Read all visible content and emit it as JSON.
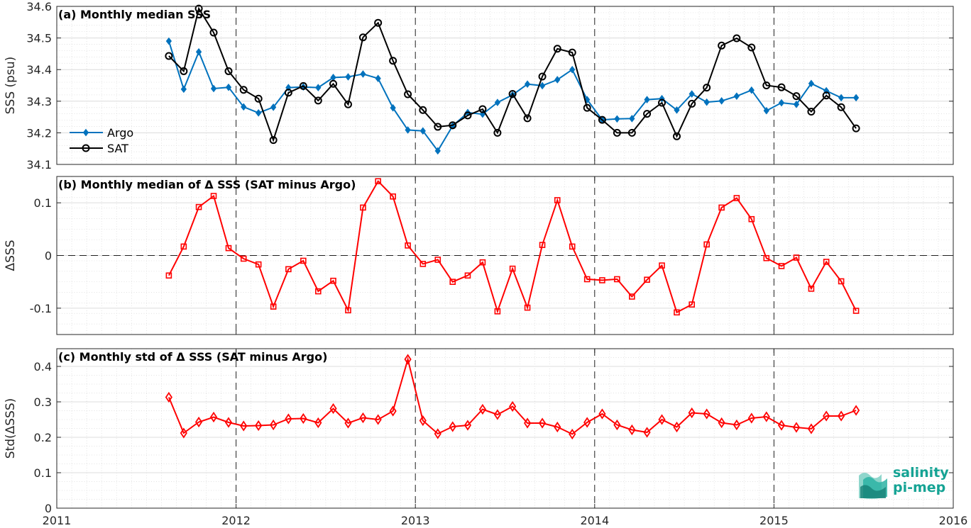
{
  "colors": {
    "argo": "#0072BD",
    "sat": "#000000",
    "delta": "#ff0000",
    "grid": "#c8c8c8"
  },
  "chart_data": [
    {
      "type": "line",
      "title": "(a) Monthly median SSS",
      "ylabel": "SSS (psu)",
      "ylim": [
        34.1,
        34.6
      ],
      "yticks": [
        "34.1",
        "34.2",
        "34.3",
        "34.4",
        "34.5",
        "34.6"
      ],
      "xlim": [
        2011,
        2016
      ],
      "grid": true,
      "legend_position": "middle-left",
      "series": [
        {
          "name": "Argo",
          "marker": "diamond-filled",
          "x": [
            2011.625,
            2011.708,
            2011.792,
            2011.875,
            2011.958,
            2012.042,
            2012.125,
            2012.208,
            2012.292,
            2012.375,
            2012.458,
            2012.542,
            2012.625,
            2012.708,
            2012.792,
            2012.875,
            2012.958,
            2013.042,
            2013.125,
            2013.208,
            2013.292,
            2013.375,
            2013.458,
            2013.542,
            2013.625,
            2013.708,
            2013.792,
            2013.875,
            2013.958,
            2014.042,
            2014.125,
            2014.208,
            2014.292,
            2014.375,
            2014.458,
            2014.542,
            2014.625,
            2014.708,
            2014.792,
            2014.875,
            2014.958,
            2015.042,
            2015.125,
            2015.208,
            2015.292,
            2015.375,
            2015.458
          ],
          "y": [
            34.49,
            34.338,
            34.456,
            34.34,
            34.344,
            34.282,
            34.263,
            34.281,
            34.343,
            34.345,
            34.343,
            34.375,
            34.377,
            34.386,
            34.372,
            34.279,
            34.209,
            34.206,
            34.143,
            34.222,
            34.264,
            34.259,
            34.296,
            34.32,
            34.354,
            34.349,
            34.368,
            34.4,
            34.305,
            34.241,
            34.244,
            34.245,
            34.305,
            34.308,
            34.272,
            34.323,
            34.297,
            34.301,
            34.316,
            34.335,
            34.27,
            34.295,
            34.29,
            34.356,
            34.333,
            34.311,
            34.311
          ]
        },
        {
          "name": "SAT",
          "marker": "circle-open",
          "x": [
            2011.625,
            2011.708,
            2011.792,
            2011.875,
            2011.958,
            2012.042,
            2012.125,
            2012.208,
            2012.292,
            2012.375,
            2012.458,
            2012.542,
            2012.625,
            2012.708,
            2012.792,
            2012.875,
            2012.958,
            2013.042,
            2013.125,
            2013.208,
            2013.292,
            2013.375,
            2013.458,
            2013.542,
            2013.625,
            2013.708,
            2013.792,
            2013.875,
            2013.958,
            2014.042,
            2014.125,
            2014.208,
            2014.292,
            2014.375,
            2014.458,
            2014.542,
            2014.625,
            2014.708,
            2014.792,
            2014.875,
            2014.958,
            2015.042,
            2015.125,
            2015.208,
            2015.292,
            2015.375,
            2015.458
          ],
          "y": [
            34.443,
            34.395,
            34.593,
            34.517,
            34.395,
            34.336,
            34.308,
            34.177,
            34.327,
            34.348,
            34.302,
            34.355,
            34.29,
            34.502,
            34.548,
            34.428,
            34.322,
            34.272,
            34.219,
            34.224,
            34.255,
            34.275,
            34.2,
            34.323,
            34.246,
            34.378,
            34.466,
            34.454,
            34.279,
            34.241,
            34.2,
            34.2,
            34.26,
            34.295,
            34.189,
            34.292,
            34.343,
            34.476,
            34.499,
            34.47,
            34.35,
            34.344,
            34.316,
            34.267,
            34.318,
            34.281,
            34.214
          ]
        }
      ]
    },
    {
      "type": "line",
      "title": "(b) Monthly median of Δ SSS (SAT minus Argo)",
      "ylabel": "ΔSSS",
      "ylim": [
        -0.15,
        0.15
      ],
      "yticks": [
        "-0.1",
        "0",
        "0.1"
      ],
      "xlim": [
        2011,
        2016
      ],
      "grid": true,
      "zero_line": true,
      "series": [
        {
          "marker": "square-open",
          "x": [
            2011.625,
            2011.708,
            2011.792,
            2011.875,
            2011.958,
            2012.042,
            2012.125,
            2012.208,
            2012.292,
            2012.375,
            2012.458,
            2012.542,
            2012.625,
            2012.708,
            2012.792,
            2012.875,
            2012.958,
            2013.042,
            2013.125,
            2013.208,
            2013.292,
            2013.375,
            2013.458,
            2013.542,
            2013.625,
            2013.708,
            2013.792,
            2013.875,
            2013.958,
            2014.042,
            2014.125,
            2014.208,
            2014.292,
            2014.375,
            2014.458,
            2014.542,
            2014.625,
            2014.708,
            2014.792,
            2014.875,
            2014.958,
            2015.042,
            2015.125,
            2015.208,
            2015.292,
            2015.375,
            2015.458
          ],
          "y": [
            -0.038,
            0.017,
            0.092,
            0.113,
            0.014,
            -0.006,
            -0.017,
            -0.097,
            -0.026,
            -0.01,
            -0.068,
            -0.048,
            -0.104,
            0.091,
            0.141,
            0.112,
            0.019,
            -0.016,
            -0.008,
            -0.05,
            -0.038,
            -0.013,
            -0.106,
            -0.025,
            -0.099,
            0.02,
            0.105,
            0.017,
            -0.045,
            -0.047,
            -0.045,
            -0.078,
            -0.046,
            -0.019,
            -0.108,
            -0.093,
            0.021,
            0.091,
            0.109,
            0.069,
            -0.005,
            -0.02,
            -0.004,
            -0.063,
            -0.012,
            -0.049,
            -0.105
          ]
        }
      ]
    },
    {
      "type": "line",
      "title": "(c) Monthly std of Δ SSS (SAT minus Argo)",
      "ylabel": "Std(ΔSSS)",
      "ylim": [
        0,
        0.45
      ],
      "yticks": [
        "0",
        "0.1",
        "0.2",
        "0.3",
        "0.4"
      ],
      "xlim": [
        2011,
        2016
      ],
      "xticks": [
        "2011",
        "2012",
        "2013",
        "2014",
        "2015",
        "2016"
      ],
      "grid": true,
      "series": [
        {
          "marker": "diamond-open",
          "x": [
            2011.625,
            2011.708,
            2011.792,
            2011.875,
            2011.958,
            2012.042,
            2012.125,
            2012.208,
            2012.292,
            2012.375,
            2012.458,
            2012.542,
            2012.625,
            2012.708,
            2012.792,
            2012.875,
            2012.958,
            2013.042,
            2013.125,
            2013.208,
            2013.292,
            2013.375,
            2013.458,
            2013.542,
            2013.625,
            2013.708,
            2013.792,
            2013.875,
            2013.958,
            2014.042,
            2014.125,
            2014.208,
            2014.292,
            2014.375,
            2014.458,
            2014.542,
            2014.625,
            2014.708,
            2014.792,
            2014.875,
            2014.958,
            2015.042,
            2015.125,
            2015.208,
            2015.292,
            2015.375,
            2015.458
          ],
          "y": [
            0.313,
            0.212,
            0.243,
            0.257,
            0.242,
            0.232,
            0.233,
            0.235,
            0.252,
            0.253,
            0.241,
            0.281,
            0.24,
            0.255,
            0.25,
            0.274,
            0.42,
            0.247,
            0.21,
            0.23,
            0.234,
            0.279,
            0.264,
            0.287,
            0.24,
            0.24,
            0.229,
            0.209,
            0.242,
            0.266,
            0.235,
            0.221,
            0.214,
            0.25,
            0.229,
            0.269,
            0.266,
            0.241,
            0.235,
            0.254,
            0.258,
            0.234,
            0.228,
            0.224,
            0.26,
            0.26,
            0.276
          ]
        }
      ]
    }
  ],
  "logo": {
    "line1": "salinity",
    "line2": "pi-mep"
  }
}
